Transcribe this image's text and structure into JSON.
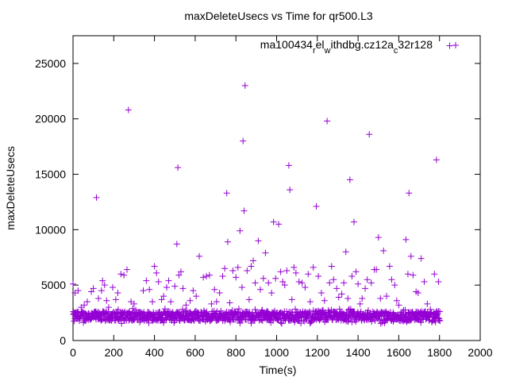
{
  "chart_data": {
    "type": "scatter",
    "title": "maxDeleteUsecs vs Time for qr500.L3",
    "xlabel": "Time(s)",
    "ylabel": "maxDeleteUsecs",
    "xlim": [
      0,
      2000
    ],
    "ylim": [
      0,
      27500
    ],
    "x_ticks": [
      "0",
      "200",
      "400",
      "600",
      "800",
      "1000",
      "1200",
      "1400",
      "1600",
      "1800",
      "2000"
    ],
    "y_ticks": [
      "0",
      "5000",
      "10000",
      "15000",
      "20000",
      "25000"
    ],
    "grid": false,
    "legend_placement": "top-right",
    "legend": {
      "parts": [
        {
          "text": "ma100434",
          "sub": false
        },
        {
          "text": "r",
          "sub": true
        },
        {
          "text": "el",
          "sub": false
        },
        {
          "text": "w",
          "sub": true
        },
        {
          "text": "ithdbg.cz12a",
          "sub": false
        },
        {
          "text": "c",
          "sub": true
        },
        {
          "text": "32r128",
          "sub": false
        }
      ]
    },
    "marker": "+",
    "series": [
      {
        "color": "#9400d3",
        "outliers": [
          [
            0,
            5100
          ],
          [
            10,
            4300
          ],
          [
            25,
            4500
          ],
          [
            40,
            3000
          ],
          [
            55,
            3200
          ],
          [
            70,
            3500
          ],
          [
            90,
            4400
          ],
          [
            100,
            4700
          ],
          [
            115,
            12900
          ],
          [
            125,
            3800
          ],
          [
            140,
            4500
          ],
          [
            145,
            5400
          ],
          [
            155,
            5000
          ],
          [
            165,
            3600
          ],
          [
            175,
            3000
          ],
          [
            195,
            4800
          ],
          [
            210,
            3700
          ],
          [
            220,
            4300
          ],
          [
            235,
            6000
          ],
          [
            250,
            5900
          ],
          [
            265,
            6400
          ],
          [
            272,
            20800
          ],
          [
            285,
            3500
          ],
          [
            300,
            3300
          ],
          [
            345,
            4500
          ],
          [
            360,
            5400
          ],
          [
            375,
            4600
          ],
          [
            390,
            3500
          ],
          [
            400,
            6700
          ],
          [
            410,
            6100
          ],
          [
            420,
            5300
          ],
          [
            435,
            3700
          ],
          [
            445,
            4000
          ],
          [
            460,
            4800
          ],
          [
            470,
            5400
          ],
          [
            480,
            3500
          ],
          [
            500,
            4900
          ],
          [
            510,
            8700
          ],
          [
            515,
            15600
          ],
          [
            520,
            5900
          ],
          [
            530,
            6200
          ],
          [
            540,
            4700
          ],
          [
            555,
            3200
          ],
          [
            575,
            3600
          ],
          [
            590,
            4500
          ],
          [
            605,
            4000
          ],
          [
            620,
            7600
          ],
          [
            640,
            5700
          ],
          [
            655,
            5800
          ],
          [
            670,
            5900
          ],
          [
            680,
            3300
          ],
          [
            695,
            4600
          ],
          [
            705,
            3500
          ],
          [
            720,
            4300
          ],
          [
            735,
            5800
          ],
          [
            745,
            6500
          ],
          [
            755,
            13300
          ],
          [
            760,
            8900
          ],
          [
            770,
            3400
          ],
          [
            785,
            6300
          ],
          [
            800,
            5700
          ],
          [
            810,
            6600
          ],
          [
            820,
            9900
          ],
          [
            830,
            4800
          ],
          [
            835,
            18000
          ],
          [
            840,
            11700
          ],
          [
            845,
            23000
          ],
          [
            855,
            6300
          ],
          [
            865,
            3700
          ],
          [
            875,
            6700
          ],
          [
            885,
            7200
          ],
          [
            895,
            5200
          ],
          [
            910,
            9000
          ],
          [
            920,
            4600
          ],
          [
            935,
            5600
          ],
          [
            945,
            7900
          ],
          [
            960,
            5200
          ],
          [
            975,
            4300
          ],
          [
            985,
            10700
          ],
          [
            995,
            5600
          ],
          [
            1010,
            10500
          ],
          [
            1020,
            6200
          ],
          [
            1030,
            5300
          ],
          [
            1040,
            5000
          ],
          [
            1050,
            6300
          ],
          [
            1060,
            15800
          ],
          [
            1065,
            13600
          ],
          [
            1075,
            3700
          ],
          [
            1085,
            6600
          ],
          [
            1095,
            6100
          ],
          [
            1110,
            5300
          ],
          [
            1125,
            5200
          ],
          [
            1140,
            4800
          ],
          [
            1155,
            6000
          ],
          [
            1165,
            3500
          ],
          [
            1180,
            6600
          ],
          [
            1195,
            12100
          ],
          [
            1205,
            5800
          ],
          [
            1220,
            4300
          ],
          [
            1235,
            3600
          ],
          [
            1248,
            19800
          ],
          [
            1260,
            5200
          ],
          [
            1270,
            6700
          ],
          [
            1280,
            5500
          ],
          [
            1295,
            4700
          ],
          [
            1305,
            3900
          ],
          [
            1320,
            4200
          ],
          [
            1330,
            5200
          ],
          [
            1340,
            8000
          ],
          [
            1350,
            3800
          ],
          [
            1360,
            14500
          ],
          [
            1370,
            5800
          ],
          [
            1380,
            10700
          ],
          [
            1390,
            6200
          ],
          [
            1400,
            5100
          ],
          [
            1410,
            3300
          ],
          [
            1420,
            3800
          ],
          [
            1435,
            4700
          ],
          [
            1445,
            5500
          ],
          [
            1455,
            18600
          ],
          [
            1465,
            5200
          ],
          [
            1480,
            6400
          ],
          [
            1490,
            6400
          ],
          [
            1500,
            9300
          ],
          [
            1510,
            3800
          ],
          [
            1525,
            8100
          ],
          [
            1540,
            4000
          ],
          [
            1555,
            6700
          ],
          [
            1565,
            5500
          ],
          [
            1580,
            5000
          ],
          [
            1590,
            3600
          ],
          [
            1600,
            3200
          ],
          [
            1635,
            9100
          ],
          [
            1645,
            6000
          ],
          [
            1650,
            13300
          ],
          [
            1660,
            7600
          ],
          [
            1670,
            5900
          ],
          [
            1685,
            4400
          ],
          [
            1695,
            4300
          ],
          [
            1710,
            7400
          ],
          [
            1725,
            5300
          ],
          [
            1740,
            3300
          ],
          [
            1755,
            2800
          ],
          [
            1775,
            6000
          ],
          [
            1785,
            16300
          ],
          [
            1795,
            5300
          ],
          [
            1850,
            26600
          ]
        ],
        "baseline": {
          "x_start": 0,
          "x_end": 1800,
          "x_step": 3,
          "y_min": 1500,
          "y_max": 2900
        }
      }
    ]
  }
}
